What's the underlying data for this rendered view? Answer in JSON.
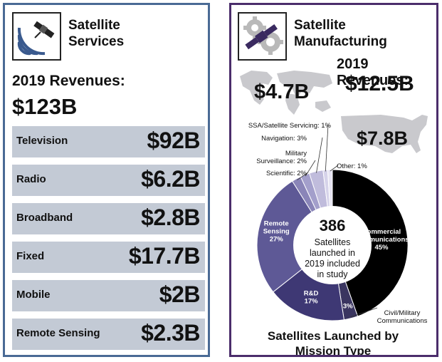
{
  "services": {
    "title_line1": "Satellite",
    "title_line2": "Services",
    "icon": "satellite-signal-icon",
    "revenue_label": "2019 Revenues:",
    "revenue_value": "$123B",
    "rows": [
      {
        "label": "Television",
        "value": "$92B"
      },
      {
        "label": "Radio",
        "value": "$6.2B"
      },
      {
        "label": "Broadband",
        "value": "$2.8B"
      },
      {
        "label": "Fixed",
        "value": "$17.7B"
      },
      {
        "label": "Mobile",
        "value": "$2B"
      },
      {
        "label": "Remote Sensing",
        "value": "$2.3B"
      }
    ]
  },
  "manufacturing": {
    "title_line1": "Satellite",
    "title_line2": "Manufacturing",
    "icon": "satellite-gears-icon",
    "revenue_label": "2019 Revenues:",
    "revenue_value": "$12.5B",
    "world_value": "$4.7B",
    "us_value": "$7.8B"
  },
  "chart_data": {
    "type": "pie",
    "title_line1": "Satellites Launched by",
    "title_line2": "Mission Type",
    "center_number": "386",
    "center_text": [
      "Satellites",
      "launched in",
      "2019 included",
      "in study"
    ],
    "slices": [
      {
        "name": "Commercial Communications",
        "label_lines": [
          "Commercial",
          "Communications",
          "45%"
        ],
        "value": 45,
        "color": "#000000"
      },
      {
        "name": "Civil/Military Communications",
        "label_lines": [
          "3%"
        ],
        "outside_lines": [
          "Civil/Military",
          "Communications"
        ],
        "value": 3,
        "color": "#3a3560"
      },
      {
        "name": "R&D",
        "label_lines": [
          "R&D",
          "17%"
        ],
        "value": 17,
        "color": "#3e3874"
      },
      {
        "name": "Remote Sensing",
        "label_lines": [
          "Remote",
          "Sensing",
          "27%"
        ],
        "value": 27,
        "color": "#5e5996"
      },
      {
        "name": "Scientific",
        "outside_lines": [
          "Scientific: 2%"
        ],
        "value": 2,
        "color": "#8a85b8"
      },
      {
        "name": "Military Surveillance",
        "outside_lines": [
          "Military",
          "Surveillance: 2%"
        ],
        "value": 2,
        "color": "#a39fcb"
      },
      {
        "name": "Navigation",
        "outside_lines": [
          "Navigation: 3%"
        ],
        "value": 3,
        "color": "#c0bcdc"
      },
      {
        "name": "SSA/Satellite Servicing",
        "outside_lines": [
          "SSA/Satellite Servicing: 1%"
        ],
        "value": 1,
        "color": "#d6d3ea"
      },
      {
        "name": "Other",
        "outside_lines": [
          "Other: 1%"
        ],
        "value": 1,
        "color": "#e6e4f2"
      }
    ]
  }
}
